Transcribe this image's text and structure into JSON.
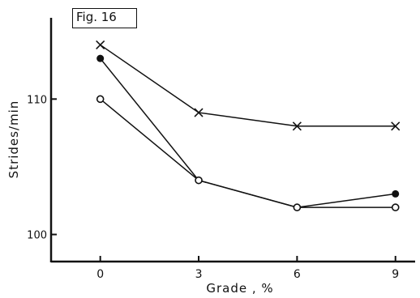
{
  "chart_data": {
    "type": "line",
    "title": "Fig. 16",
    "xlabel": "Grade , %",
    "ylabel": "Strides/min",
    "x": [
      0,
      3,
      6,
      9
    ],
    "xticks": [
      "0",
      "3",
      "6",
      "9"
    ],
    "yticks": [
      {
        "value": 100,
        "label": "100"
      },
      {
        "value": 110,
        "label": "110"
      }
    ],
    "xlim": [
      -1.5,
      9.6
    ],
    "ylim": [
      98,
      116
    ],
    "grid": false,
    "series": [
      {
        "marker": "x",
        "values": [
          114,
          109,
          108,
          108
        ]
      },
      {
        "marker": "filled-circle",
        "values": [
          113,
          104,
          102,
          103
        ]
      },
      {
        "marker": "open-circle",
        "values": [
          110,
          104,
          102,
          102
        ]
      }
    ]
  }
}
